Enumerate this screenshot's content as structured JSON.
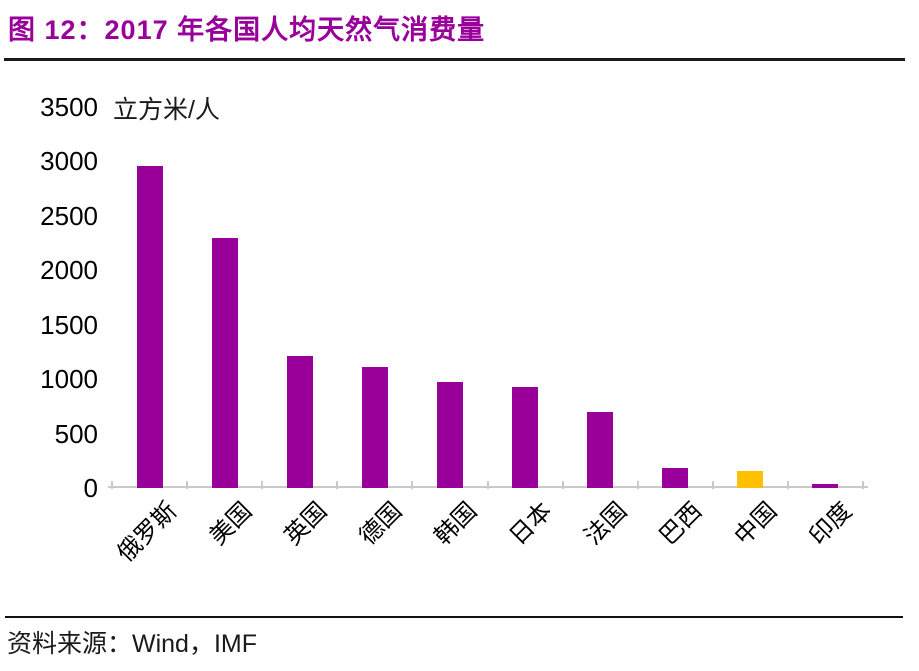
{
  "figure": {
    "title": "图 12：2017 年各国人均天然气消费量",
    "source": "资料来源：Wind，IMF"
  },
  "chart_data": {
    "type": "bar",
    "title": "2017 年各国人均天然气消费量",
    "unit_label": "立方米/人",
    "categories": [
      "俄罗斯",
      "美国",
      "英国",
      "德国",
      "韩国",
      "日本",
      "法国",
      "巴西",
      "中国",
      "印度"
    ],
    "values": [
      2960,
      2300,
      1210,
      1110,
      975,
      930,
      700,
      185,
      160,
      40
    ],
    "ylim": [
      0,
      3500
    ],
    "yticks": [
      0,
      500,
      1000,
      1500,
      2000,
      2500,
      3000,
      3500
    ],
    "bar_color": "#990099",
    "highlight_index": 8,
    "highlight_color": "#FFC000",
    "axis_color": "#c9c9c9",
    "grid": false,
    "legend": false
  }
}
